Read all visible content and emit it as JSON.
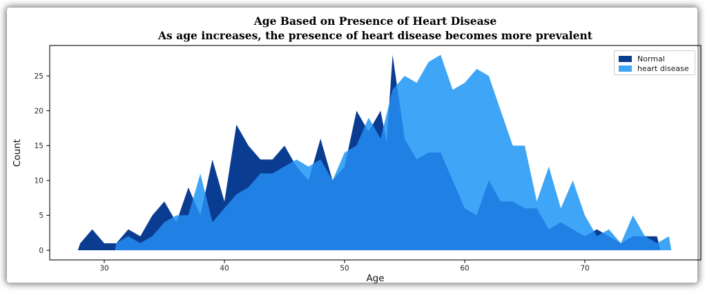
{
  "figure": {
    "kind": "matplotlib-figure"
  },
  "chart_data": {
    "type": "area",
    "title": "Age Based on Presence of Heart Disease",
    "subtitle": "As age increases, the presence of heart disease becomes more prevalent",
    "xlabel": "Age",
    "ylabel": "Count",
    "x_ticks": [
      30,
      40,
      50,
      60,
      70
    ],
    "y_ticks": [
      0,
      5,
      10,
      15,
      20,
      25
    ],
    "xlim": [
      25.5,
      79.7
    ],
    "ylim": [
      0,
      29.3
    ],
    "grid": false,
    "legend_position": "upper right",
    "overlap_color": "#2180e3",
    "series": [
      {
        "name": "Normal",
        "color": "#0a3d91",
        "points": [
          [
            27.8,
            0
          ],
          [
            28,
            1
          ],
          [
            29,
            3
          ],
          [
            30,
            1
          ],
          [
            31,
            1
          ],
          [
            32,
            3
          ],
          [
            33,
            2
          ],
          [
            34,
            5
          ],
          [
            35,
            7
          ],
          [
            36,
            4
          ],
          [
            37,
            9
          ],
          [
            38,
            5
          ],
          [
            39,
            13
          ],
          [
            40,
            7
          ],
          [
            41,
            18
          ],
          [
            42,
            15
          ],
          [
            43,
            13
          ],
          [
            44,
            13
          ],
          [
            45,
            15
          ],
          [
            46,
            12
          ],
          [
            47,
            10
          ],
          [
            48,
            16
          ],
          [
            49,
            10
          ],
          [
            50,
            12
          ],
          [
            51,
            20
          ],
          [
            52,
            17
          ],
          [
            53,
            20
          ],
          [
            53.5,
            15.5
          ],
          [
            54,
            28
          ],
          [
            55,
            16
          ],
          [
            56,
            13
          ],
          [
            57,
            14
          ],
          [
            58,
            14
          ],
          [
            59,
            10
          ],
          [
            60,
            6
          ],
          [
            61,
            5
          ],
          [
            62,
            10
          ],
          [
            63,
            7
          ],
          [
            64,
            7
          ],
          [
            65,
            6
          ],
          [
            66,
            6
          ],
          [
            67,
            3
          ],
          [
            68,
            4
          ],
          [
            69,
            3
          ],
          [
            70,
            2
          ],
          [
            71,
            3
          ],
          [
            72,
            2
          ],
          [
            73,
            1
          ],
          [
            74,
            2
          ],
          [
            75,
            2
          ],
          [
            76,
            2
          ],
          [
            76.3,
            0
          ]
        ]
      },
      {
        "name": "heart disease",
        "color": "#3fa5f6",
        "points": [
          [
            30.9,
            0
          ],
          [
            31,
            1
          ],
          [
            32,
            2
          ],
          [
            33,
            1
          ],
          [
            34,
            2
          ],
          [
            35,
            4
          ],
          [
            36,
            5
          ],
          [
            37,
            5
          ],
          [
            38,
            11
          ],
          [
            39,
            4
          ],
          [
            40,
            6
          ],
          [
            41,
            8
          ],
          [
            42,
            9
          ],
          [
            43,
            11
          ],
          [
            44,
            11
          ],
          [
            45,
            12
          ],
          [
            46,
            13
          ],
          [
            47,
            12
          ],
          [
            48,
            13
          ],
          [
            49,
            10
          ],
          [
            50,
            14
          ],
          [
            51,
            15
          ],
          [
            52,
            19
          ],
          [
            53,
            16
          ],
          [
            54,
            23
          ],
          [
            55,
            25
          ],
          [
            56,
            24
          ],
          [
            57,
            27
          ],
          [
            58,
            28
          ],
          [
            59,
            23
          ],
          [
            60,
            24
          ],
          [
            61,
            26
          ],
          [
            62,
            25
          ],
          [
            63,
            20
          ],
          [
            64,
            15
          ],
          [
            65,
            15
          ],
          [
            66,
            7
          ],
          [
            67,
            12
          ],
          [
            68,
            6
          ],
          [
            69,
            10
          ],
          [
            70,
            5
          ],
          [
            71,
            2
          ],
          [
            72,
            3
          ],
          [
            73,
            1
          ],
          [
            74,
            5
          ],
          [
            75,
            2
          ],
          [
            76,
            1
          ],
          [
            77,
            2
          ],
          [
            77.2,
            0
          ]
        ]
      }
    ],
    "axis": {
      "spine_color": "#1a1a1a",
      "tick_label_color": "#262626"
    }
  }
}
